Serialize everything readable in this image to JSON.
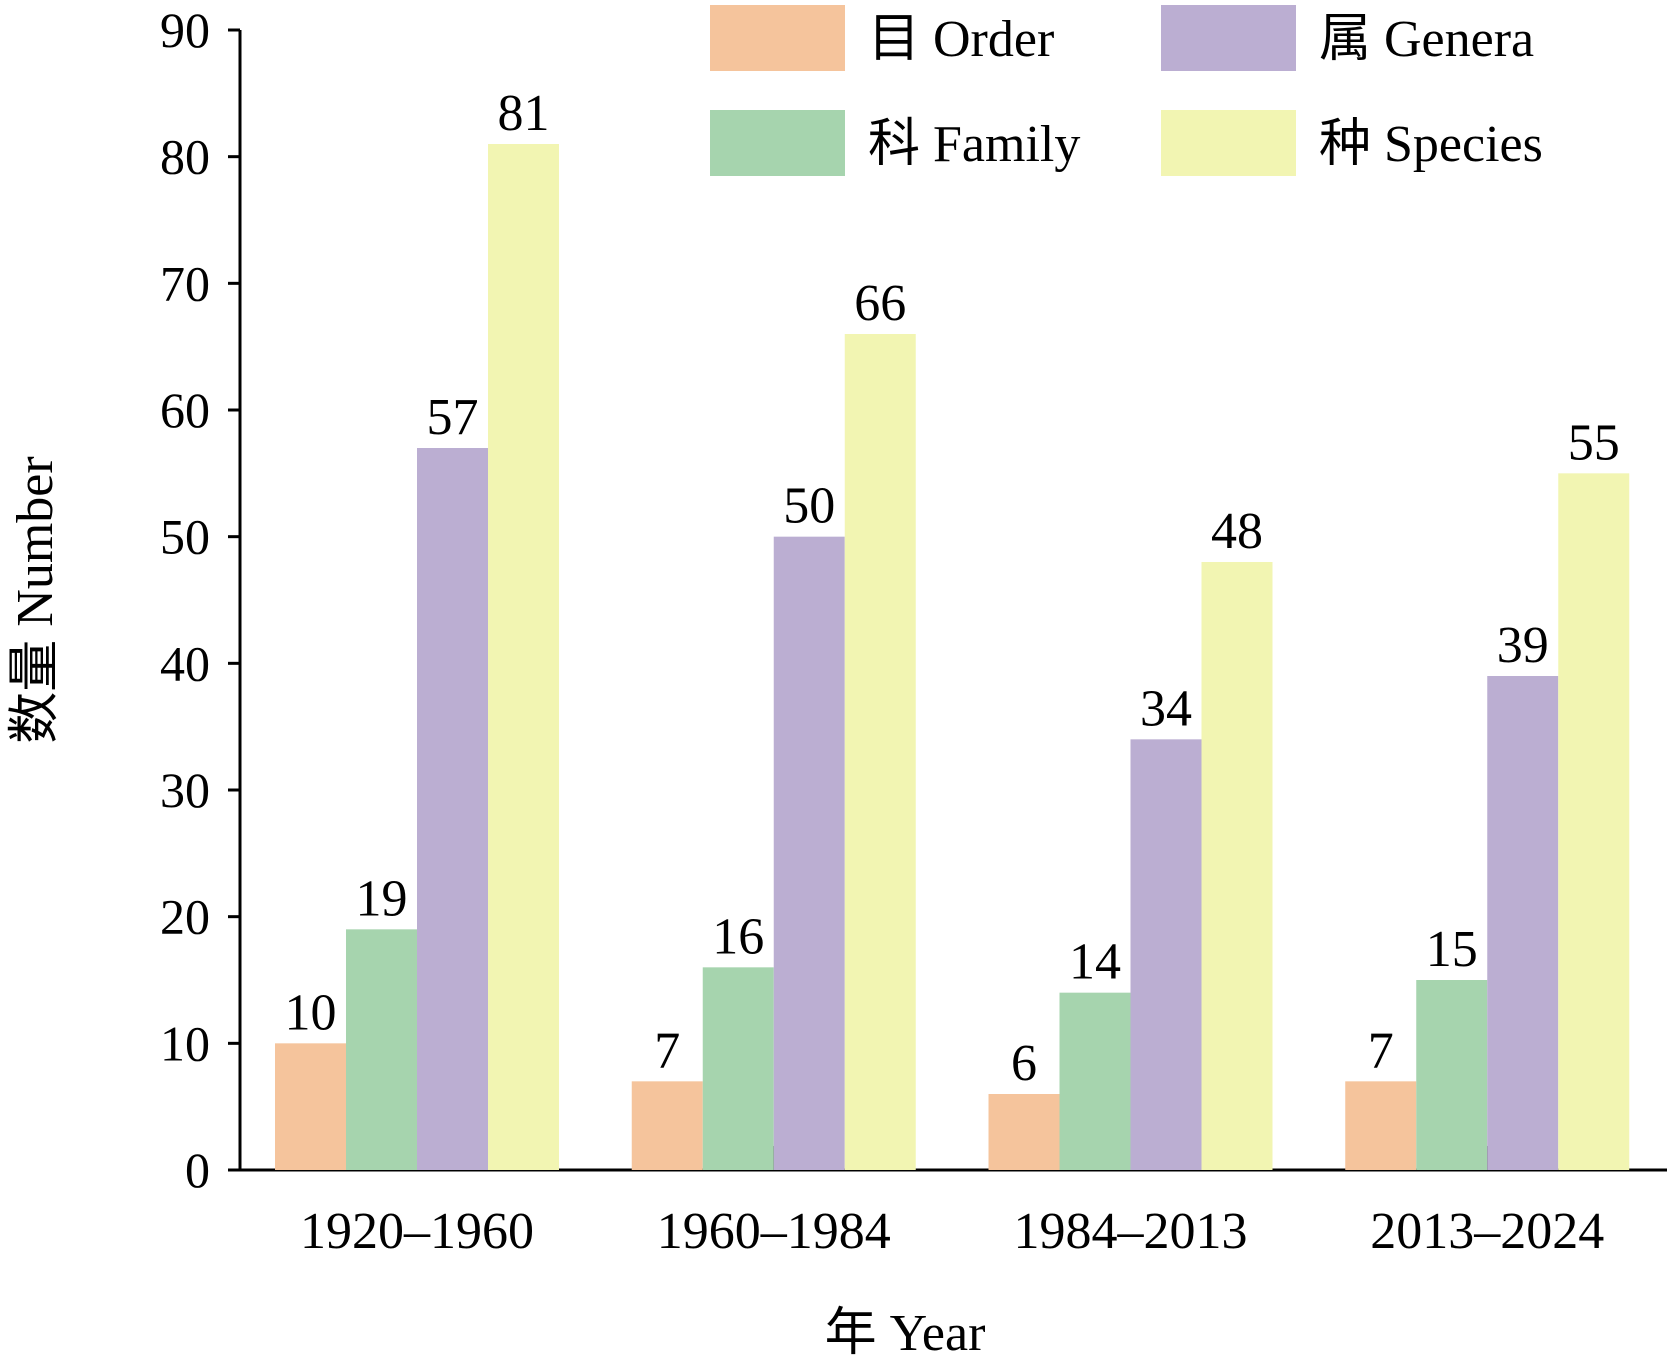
{
  "chart_data": {
    "type": "bar",
    "categories": [
      "1920–1960",
      "1960–1984",
      "1984–2013",
      "2013–2024"
    ],
    "series": [
      {
        "name": "目 Order",
        "color": "#F5C49C",
        "values": [
          10,
          7,
          6,
          7
        ]
      },
      {
        "name": "科 Family",
        "color": "#A6D4AE",
        "values": [
          19,
          16,
          14,
          15
        ]
      },
      {
        "name": "属 Genera",
        "color": "#BBAED2",
        "values": [
          57,
          50,
          34,
          39
        ]
      },
      {
        "name": "种 Species",
        "color": "#F2F5B2",
        "values": [
          81,
          66,
          48,
          55
        ]
      }
    ],
    "xlabel": "年 Year",
    "ylabel": "数量 Number",
    "ylim": [
      0,
      90
    ],
    "yticks": [
      0,
      10,
      20,
      30,
      40,
      50,
      60,
      70,
      80,
      90
    ],
    "legend_position": "top-right",
    "grid": false
  }
}
